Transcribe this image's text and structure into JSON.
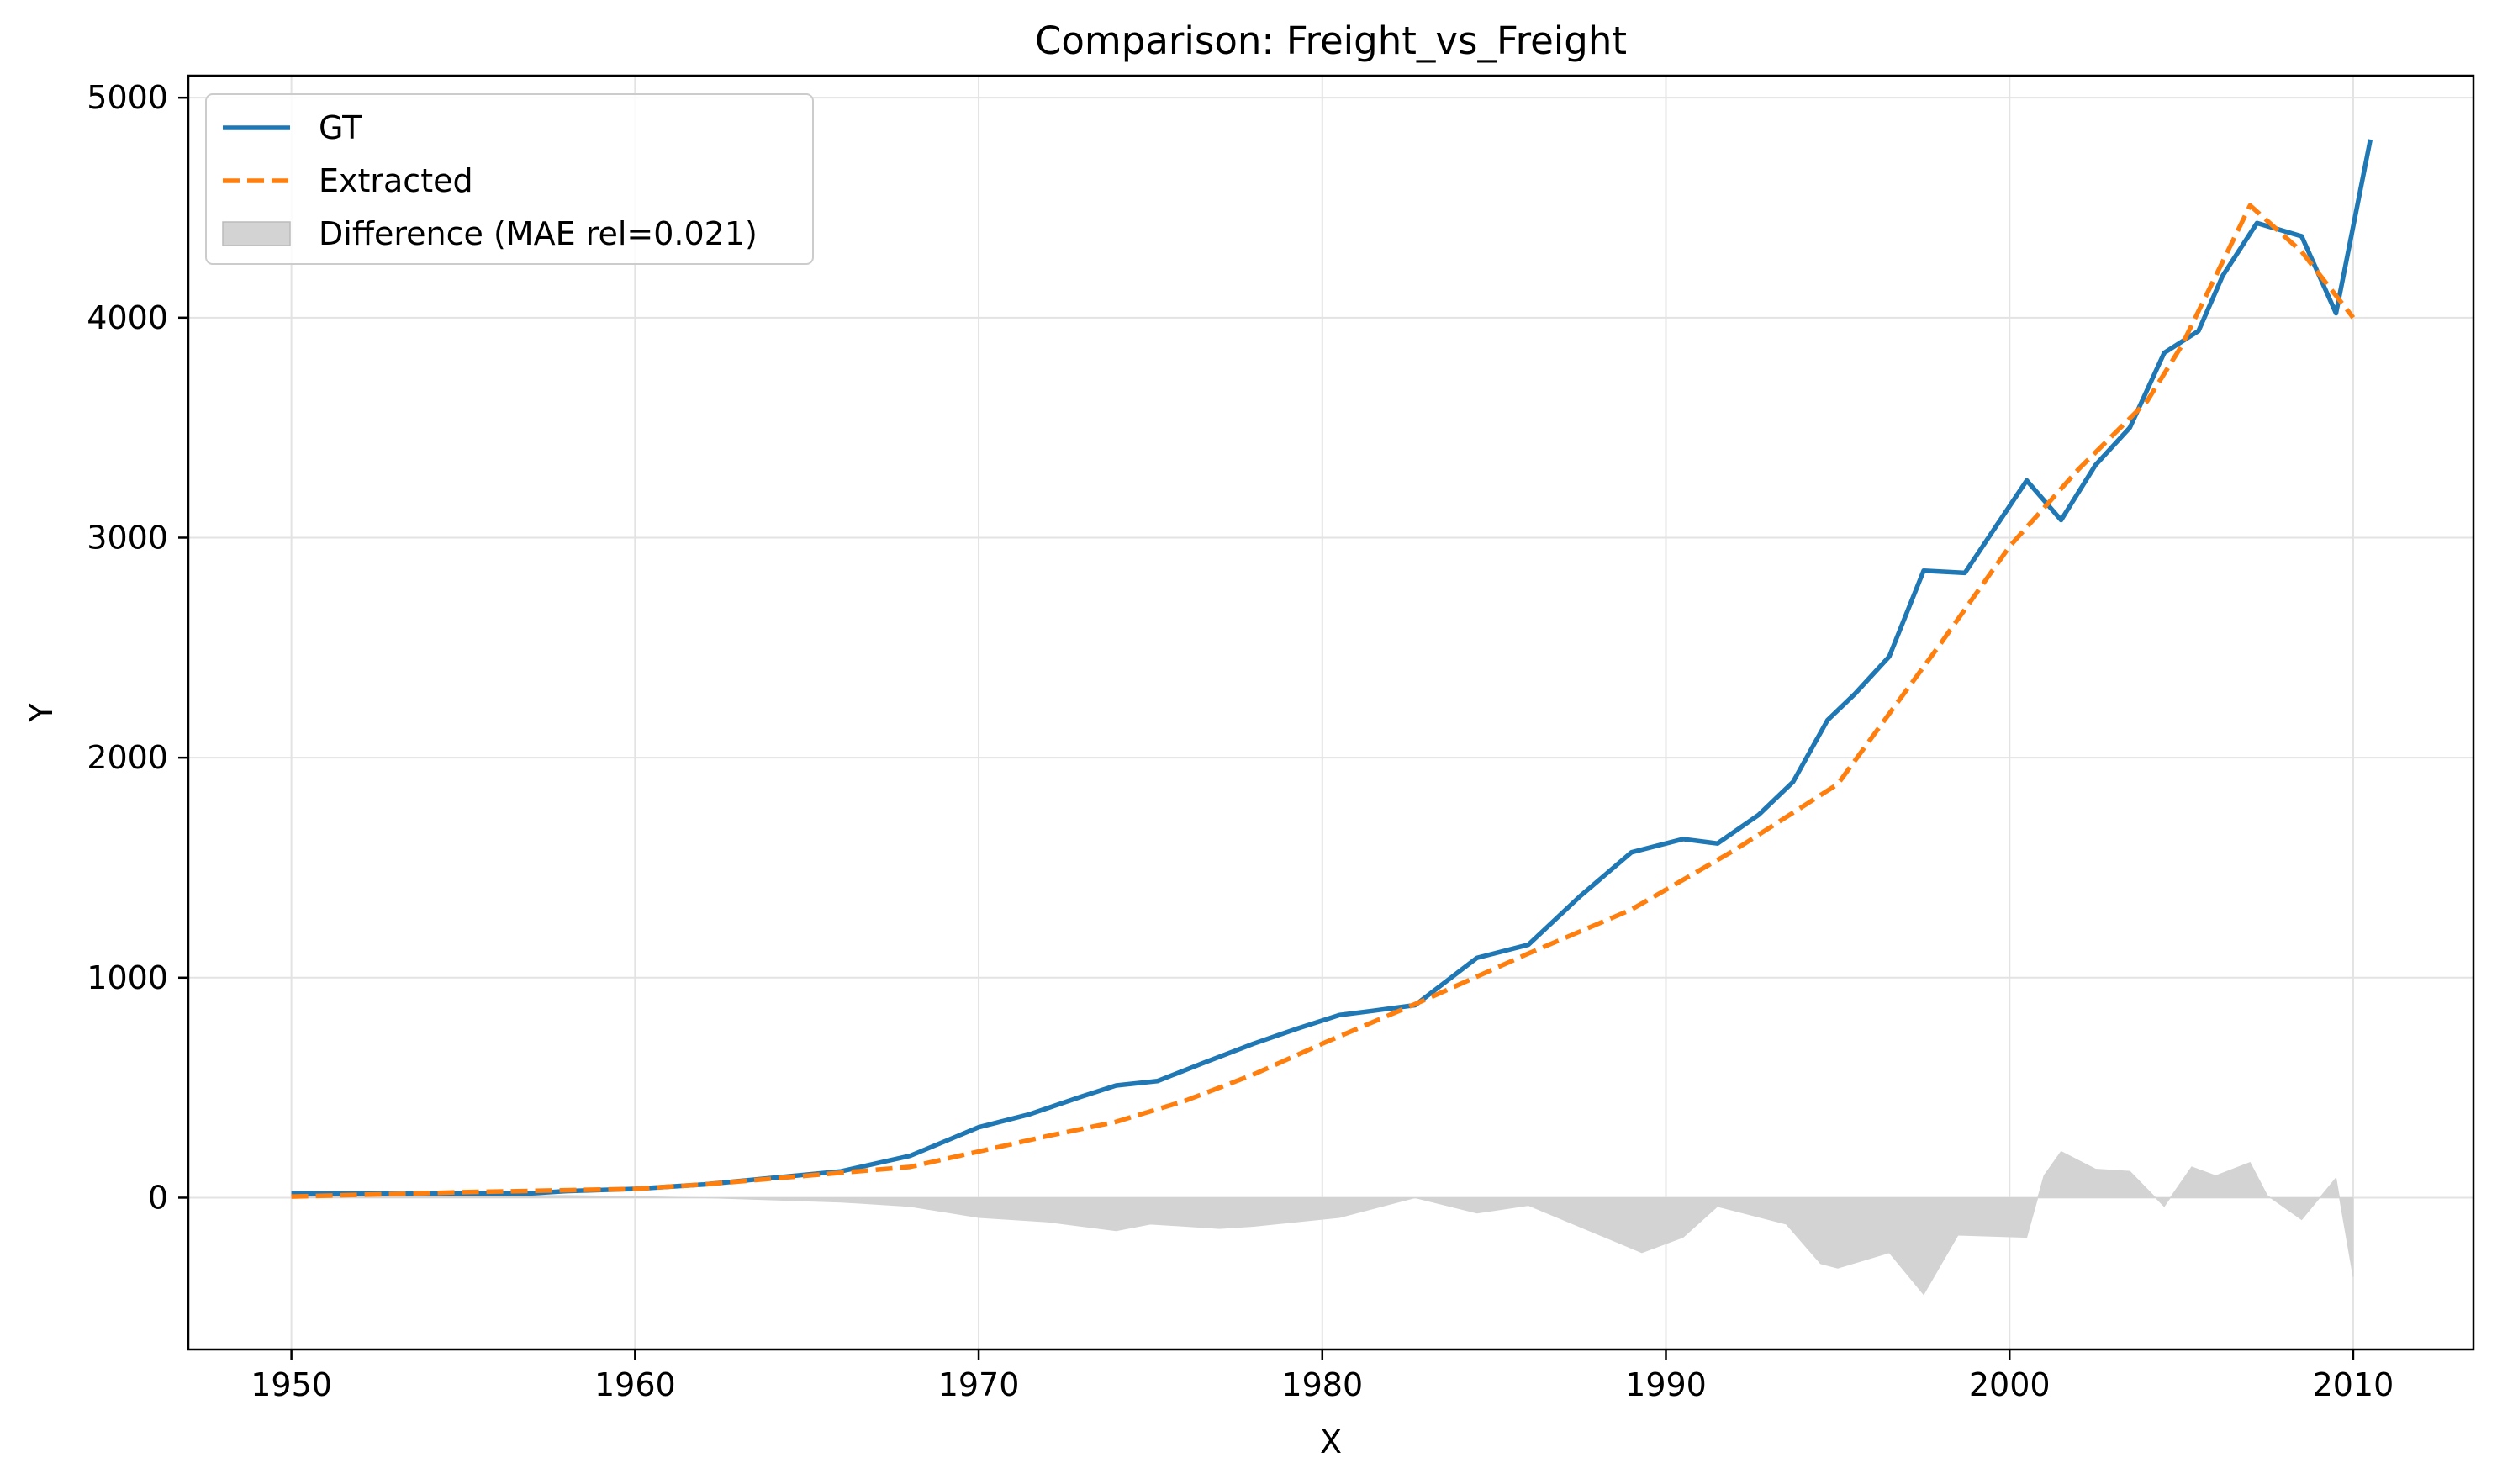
{
  "chart_data": {
    "type": "line",
    "title": "Comparison: Freight_vs_Freight",
    "xlabel": "X",
    "ylabel": "Y",
    "xlim": [
      1947,
      2013.5
    ],
    "ylim": [
      -690,
      5100
    ],
    "xticks": [
      1950,
      1960,
      1970,
      1980,
      1990,
      2000,
      2010
    ],
    "yticks": [
      0,
      1000,
      2000,
      3000,
      4000,
      5000
    ],
    "grid": true,
    "legend": {
      "placement": "upper left",
      "entries": [
        {
          "label": "GT",
          "style": "line",
          "color": "#1f77b4"
        },
        {
          "label": "Extracted",
          "style": "dashed",
          "color": "#ff7f0e"
        },
        {
          "label": "Difference (MAE rel=0.021)",
          "style": "patch",
          "color": "#d3d3d3"
        }
      ]
    },
    "series": [
      {
        "name": "GT",
        "color": "#1f77b4",
        "style": "solid",
        "x": [
          1950,
          1952,
          1954,
          1956,
          1957,
          1958,
          1960,
          1962,
          1964,
          1966,
          1968,
          1970,
          1971.5,
          1973,
          1974,
          1975.2,
          1976.5,
          1978,
          1979.3,
          1980.5,
          1981.5,
          1982.7,
          1984.5,
          1986,
          1987.5,
          1989,
          1990.5,
          1991.5,
          1992.7,
          1993.7,
          1994.7,
          1995.5,
          1996.5,
          1997.5,
          1998.7,
          2000.5,
          2001.5,
          2002.5,
          2003.5,
          2004.5,
          2005.5,
          2006.2,
          2007.2,
          2008.5,
          2009.5,
          2010.5
        ],
        "y": [
          20,
          20,
          20,
          20,
          20,
          30,
          40,
          60,
          90,
          120,
          190,
          320,
          380,
          460,
          510,
          530,
          610,
          700,
          770,
          830,
          850,
          875,
          1090,
          1150,
          1370,
          1570,
          1630,
          1610,
          1740,
          1890,
          2170,
          2290,
          2460,
          2850,
          2840,
          3260,
          3080,
          3330,
          3500,
          3840,
          3940,
          4190,
          4430,
          4370,
          4020,
          4810
        ]
      },
      {
        "name": "Extracted",
        "color": "#ff7f0e",
        "style": "dashed",
        "x": [
          1950,
          1955,
          1960,
          1962,
          1965,
          1968,
          1970,
          1972,
          1974,
          1976,
          1978,
          1980,
          1983,
          1986,
          1989,
          1992,
          1995,
          1998,
          2000,
          2002,
          2004,
          2005,
          2007,
          2008.5,
          2010
        ],
        "y": [
          5,
          25,
          40,
          60,
          100,
          140,
          210,
          280,
          345,
          440,
          560,
          700,
          900,
          1110,
          1310,
          1580,
          1880,
          2520,
          2960,
          3310,
          3620,
          3870,
          4510,
          4300,
          4000
        ]
      }
    ],
    "difference": {
      "name": "Difference (MAE rel=0.021)",
      "color": "#d3d3d3",
      "x": [
        1950,
        1958,
        1962,
        1966,
        1968,
        1970,
        1972,
        1974,
        1975,
        1977,
        1978,
        1980.5,
        1982.7,
        1984.5,
        1986,
        1989.3,
        1990.5,
        1991.5,
        1993.5,
        1994.5,
        1995,
        1996.5,
        1997.5,
        1998.5,
        2000.5,
        2001,
        2001.5,
        2002.5,
        2003.5,
        2004.5,
        2005.3,
        2006,
        2007,
        2007.5,
        2008.5,
        2009.5,
        2010
      ],
      "y": [
        10,
        10,
        0,
        -20,
        -40,
        -90,
        -110,
        -150,
        -120,
        -140,
        -130,
        -90,
        0,
        -70,
        -35,
        -250,
        -180,
        -40,
        -120,
        -300,
        -320,
        -250,
        -440,
        -170,
        -180,
        100,
        210,
        130,
        120,
        -40,
        140,
        100,
        160,
        10,
        -100,
        90,
        -360
      ]
    }
  }
}
